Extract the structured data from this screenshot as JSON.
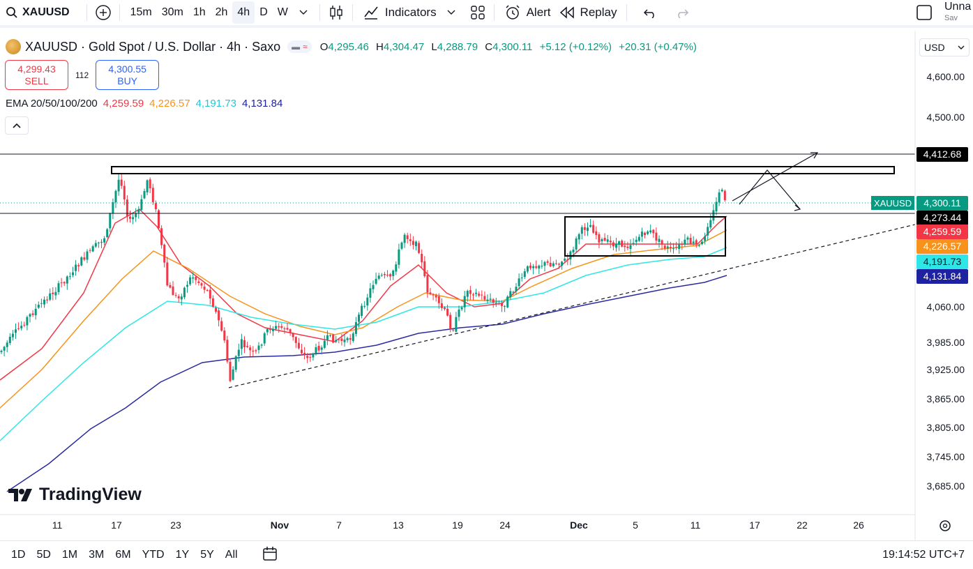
{
  "toolbar": {
    "symbol": "XAUUSD",
    "timeframes": [
      "15m",
      "30m",
      "1h",
      "2h",
      "4h",
      "D",
      "W"
    ],
    "active_timeframe": "4h",
    "indicators_label": "Indicators",
    "alert_label": "Alert",
    "replay_label": "Replay",
    "layout_name": "Unna",
    "layout_sub": "Sav"
  },
  "legend": {
    "title": "XAUUSD · Gold Spot / U.S. Dollar · 4h · Saxo",
    "open_label": "O",
    "open": "4,295.46",
    "high_label": "H",
    "high": "4,304.47",
    "low_label": "L",
    "low": "4,288.79",
    "close_label": "C",
    "close": "4,300.11",
    "change": "+5.12 (+0.12%)",
    "change2": "+20.31 (+0.47%)"
  },
  "trade": {
    "sell_price": "4,299.43",
    "sell_label": "SELL",
    "spread": "112",
    "buy_price": "4,300.55",
    "buy_label": "BUY"
  },
  "ema": {
    "label": "EMA 20/50/100/200",
    "values": [
      "4,259.59",
      "4,226.57",
      "4,191.73",
      "4,131.84"
    ],
    "colors": [
      "#f23645",
      "#f7931a",
      "#2ee6e6",
      "#2a2aa0"
    ]
  },
  "currency": "USD",
  "brand": "TradingView",
  "ranges": [
    "1D",
    "5D",
    "1M",
    "3M",
    "6M",
    "YTD",
    "1Y",
    "5Y",
    "All"
  ],
  "clock": "19:14:52 UTC+7",
  "colors": {
    "up": "#089981",
    "down": "#f23645",
    "accent": "#2962ff"
  },
  "chart_data": {
    "type": "candlestick",
    "symbol_label": "XAUUSD",
    "y_ticks": [
      "4,600.00",
      "4,500.00",
      "4,060.00",
      "3,985.00",
      "3,925.00",
      "3,865.00",
      "3,805.00",
      "3,745.00",
      "3,685.00"
    ],
    "x_ticks": [
      "11",
      "17",
      "23",
      "Nov",
      "7",
      "13",
      "19",
      "24",
      "Dec",
      "5",
      "11",
      "17",
      "22",
      "26"
    ],
    "price_labels": [
      {
        "text": "4,412.68",
        "bg": "#000000",
        "fg": "#ffffff"
      },
      {
        "text": "4,300.11",
        "bg": "#089981",
        "fg": "#ffffff"
      },
      {
        "text": "4,273.44",
        "bg": "#000000",
        "fg": "#ffffff"
      },
      {
        "text": "4,259.59",
        "bg": "#f23645",
        "fg": "#ffffff"
      },
      {
        "text": "4,226.57",
        "bg": "#f7931a",
        "fg": "#ffffff"
      },
      {
        "text": "4,191.73",
        "bg": "#2ee6e6",
        "fg": "#131722"
      },
      {
        "text": "4,131.84",
        "bg": "#1e22a0",
        "fg": "#ffffff"
      }
    ],
    "annotations": [
      "resistance zone",
      "consolidation box",
      "rising trendline",
      "projected path arrows"
    ]
  }
}
